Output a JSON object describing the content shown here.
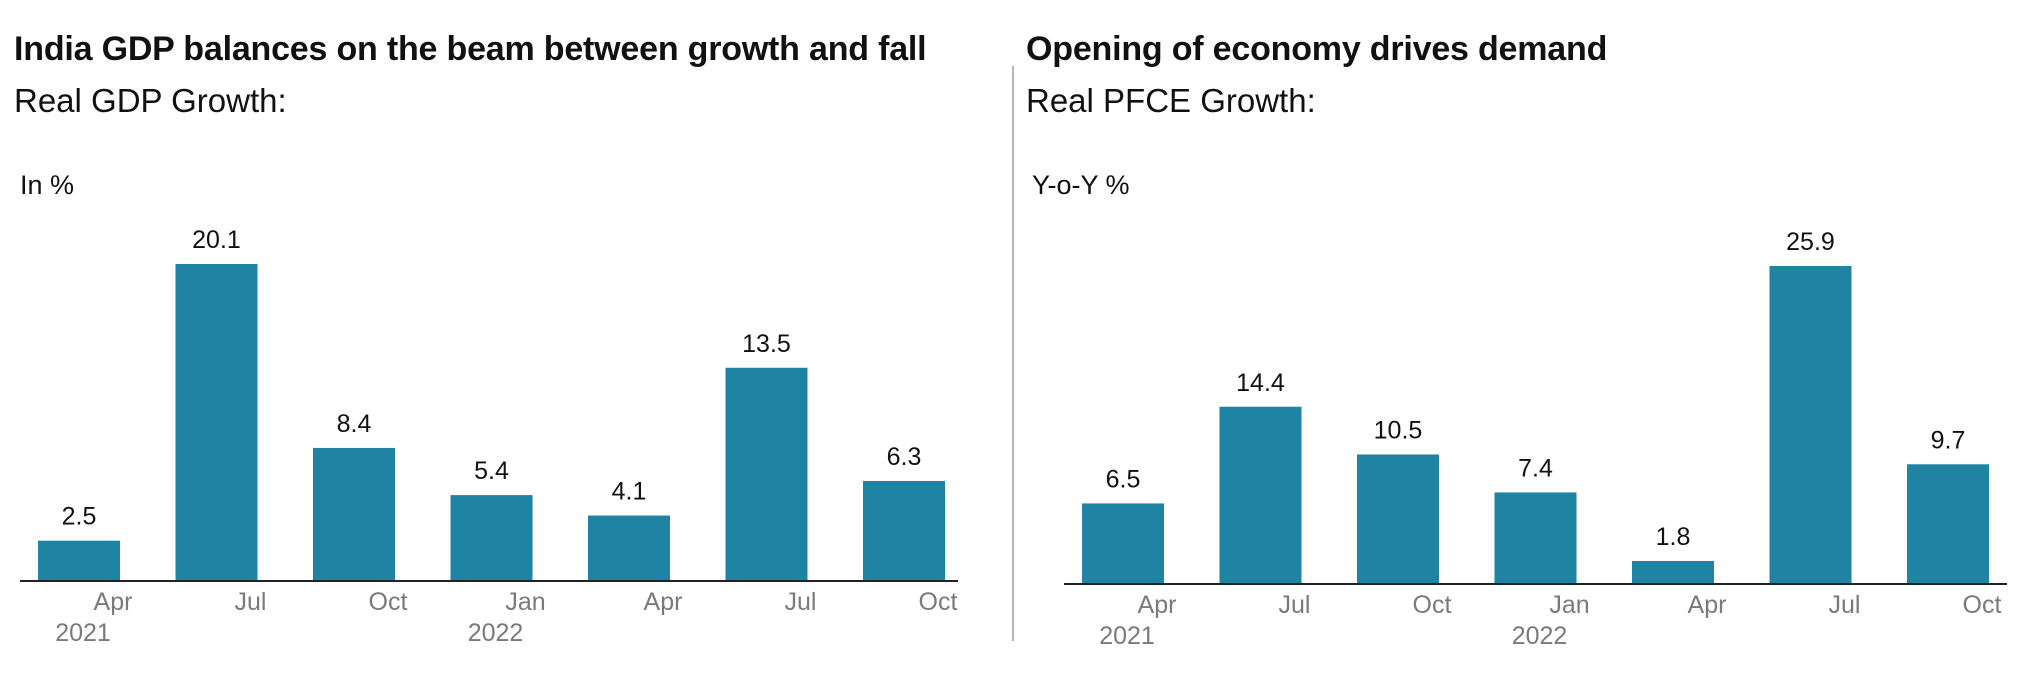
{
  "colors": {
    "bar": "#1f83a3",
    "axis": "#222222",
    "tick_text": "#7a7a7a",
    "label_text": "#111111"
  },
  "chart_data": [
    {
      "type": "bar",
      "title": "India GDP balances on the beam between growth and fall",
      "subtitle": "Real GDP Growth:",
      "unit_label": "In %",
      "categories": [
        "Apr 2021",
        "Jul 2021",
        "Oct 2021",
        "Jan 2022",
        "Apr 2022",
        "Jul 2022",
        "Oct 2022"
      ],
      "tick_labels": [
        {
          "month": "Apr",
          "year": "2021"
        },
        {
          "month": "Jul",
          "year": ""
        },
        {
          "month": "Oct",
          "year": ""
        },
        {
          "month": "Jan",
          "year": "2022"
        },
        {
          "month": "Apr",
          "year": ""
        },
        {
          "month": "Jul",
          "year": ""
        },
        {
          "month": "Oct",
          "year": ""
        }
      ],
      "values": [
        2.5,
        20.1,
        8.4,
        5.4,
        4.1,
        13.5,
        6.3
      ],
      "ylim": [
        0,
        20.1
      ],
      "grid": false,
      "legend": "none"
    },
    {
      "type": "bar",
      "title": "Opening of economy drives demand",
      "subtitle": "Real PFCE Growth:",
      "unit_label": "Y-o-Y %",
      "categories": [
        "Apr 2021",
        "Jul 2021",
        "Oct 2021",
        "Jan 2022",
        "Apr 2022",
        "Jul 2022",
        "Oct 2022"
      ],
      "tick_labels": [
        {
          "month": "Apr",
          "year": "2021"
        },
        {
          "month": "Jul",
          "year": ""
        },
        {
          "month": "Oct",
          "year": ""
        },
        {
          "month": "Jan",
          "year": "2022"
        },
        {
          "month": "Apr",
          "year": ""
        },
        {
          "month": "Jul",
          "year": ""
        },
        {
          "month": "Oct",
          "year": ""
        }
      ],
      "values": [
        6.5,
        14.4,
        10.5,
        7.4,
        1.8,
        25.9,
        9.7
      ],
      "ylim": [
        0,
        25.9
      ],
      "grid": false,
      "legend": "none"
    }
  ]
}
